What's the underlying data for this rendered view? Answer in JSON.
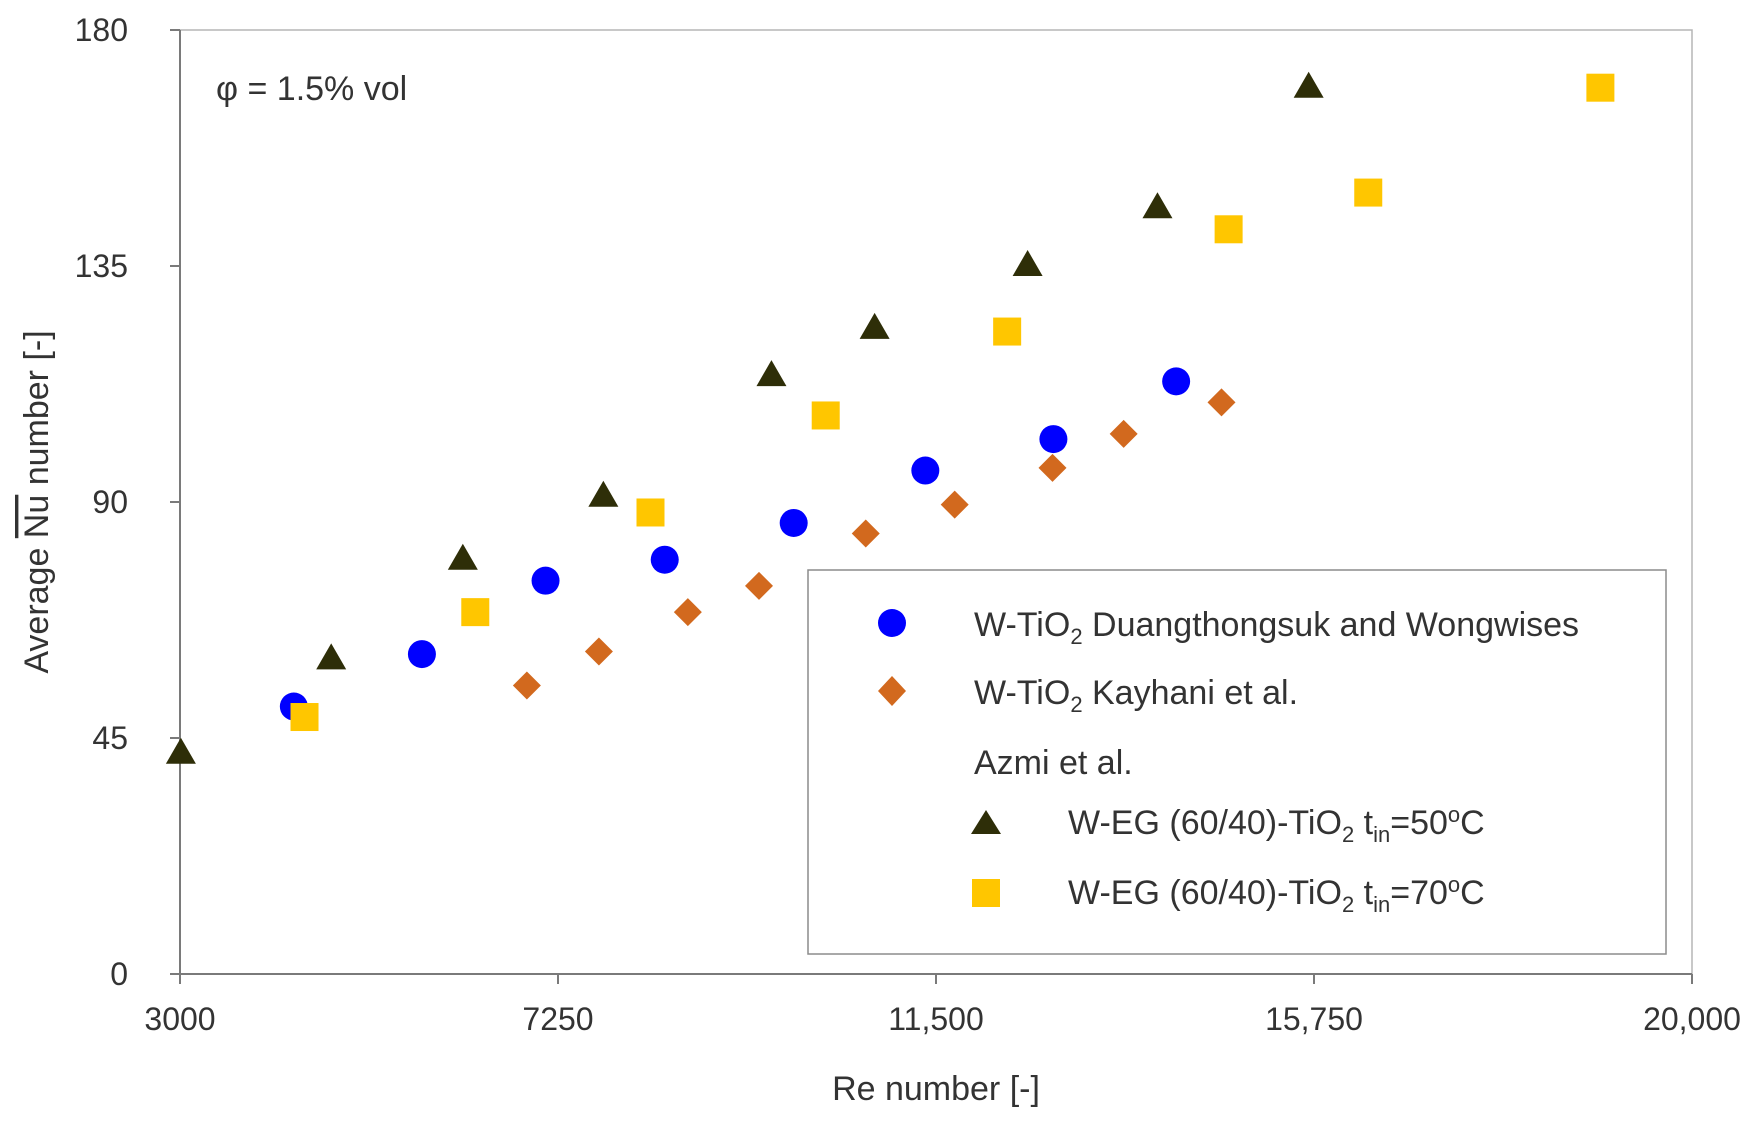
{
  "chart_data": {
    "type": "scatter",
    "title": "",
    "annotation": "φ = 1.5% vol",
    "xlabel": "Re number [-]",
    "ylabel": {
      "pre": "Average ",
      "over": "Nu",
      "post": " number [-]"
    },
    "xlim": [
      3000,
      20000
    ],
    "ylim": [
      0,
      180
    ],
    "xticks": [
      3000,
      7250,
      11500,
      15750,
      20000
    ],
    "xtick_labels": [
      "3000",
      "7250",
      "11,500",
      "15,750",
      "20,000"
    ],
    "yticks": [
      0,
      45,
      90,
      135,
      180
    ],
    "ytick_labels": [
      "0",
      "45",
      "90",
      "135",
      "180"
    ],
    "grid": false,
    "legend_position": "bottom-right",
    "legend_group_label": "Azmi et al.",
    "colors": {
      "circle": "#0000FF",
      "diamond": "#D2691E",
      "triangle": "#2E2E08",
      "square": "#FFC600"
    },
    "series": [
      {
        "id": "duang",
        "name": "W-TiO2 Duangthongsuk and Wongwises",
        "label": {
          "a": "W-TiO",
          "sub1": "2",
          "b": " Duangthongsuk and Wongwises"
        },
        "marker": "circle",
        "x": [
          4280,
          5720,
          7110,
          8450,
          9900,
          11380,
          12820,
          14200
        ],
        "y": [
          51,
          61,
          75,
          79,
          86,
          96,
          102,
          113
        ]
      },
      {
        "id": "kayhani",
        "name": "W-TiO2 Kayhani et al.",
        "label": {
          "a": "W-TiO",
          "sub1": "2",
          "b": " Kayhani et al."
        },
        "marker": "diamond",
        "x": [
          6900,
          7710,
          8710,
          9510,
          10710,
          11710,
          12810,
          13610,
          14710
        ],
        "y": [
          55,
          61.5,
          69,
          74,
          84,
          89.5,
          96.5,
          103,
          109
        ]
      },
      {
        "id": "azmi50",
        "name": "W-EG (60/40)-TiO2 tin=50oC",
        "label": {
          "a": "W-EG (60/40)-TiO",
          "sub1": "2",
          "b": " t",
          "sub2": "in",
          "c": "=50",
          "sup": "o",
          "d": "C"
        },
        "marker": "triangle",
        "x": [
          3010,
          4700,
          6180,
          7760,
          9650,
          10810,
          12530,
          13990,
          15690
        ],
        "y": [
          42,
          60,
          79,
          91,
          114,
          123,
          135,
          146,
          169
        ]
      },
      {
        "id": "azmi70",
        "name": "W-EG (60/40)-TiO2 tin=70oC",
        "label": {
          "a": "W-EG (60/40)-TiO",
          "sub1": "2",
          "b": " t",
          "sub2": "in",
          "c": "=70",
          "sup": "o",
          "d": "C"
        },
        "marker": "square",
        "x": [
          4400,
          6320,
          8290,
          10260,
          12300,
          14790,
          16360,
          18970
        ],
        "y": [
          49,
          69,
          88,
          106.5,
          122.5,
          142,
          149,
          169
        ]
      }
    ]
  }
}
